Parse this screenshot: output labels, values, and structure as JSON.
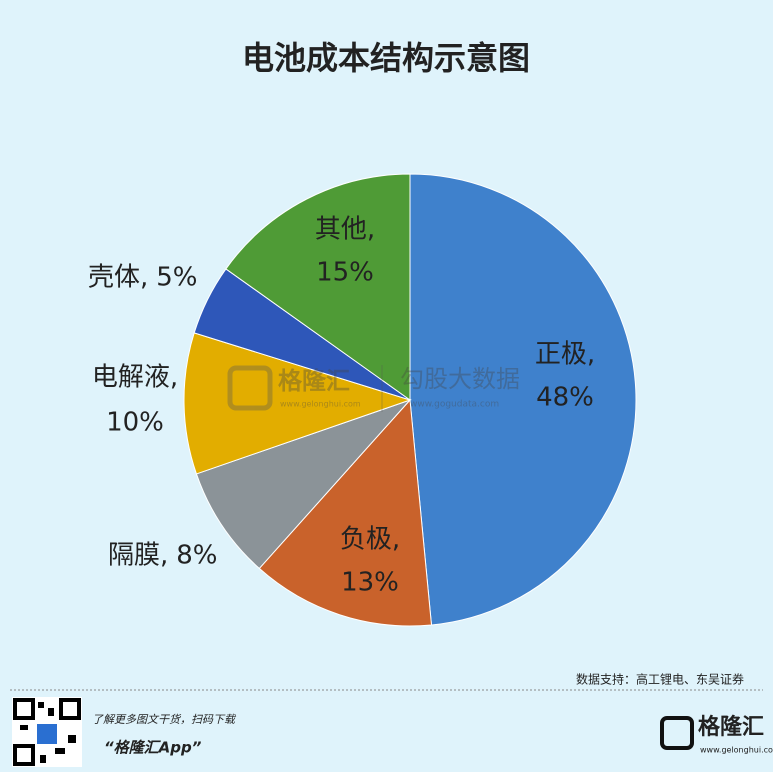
{
  "chart_data": {
    "type": "pie",
    "title": "电池成本结构示意图",
    "categories": [
      "正极,",
      "负极,",
      "隔膜,",
      "电解液,",
      "壳体,",
      "其他,"
    ],
    "values": [
      48,
      13,
      8,
      10,
      5,
      15
    ],
    "value_labels": [
      "48%",
      "13%",
      "8%",
      "10%",
      "5%",
      "15%"
    ],
    "colors": [
      "#3f81cc",
      "#c9622b",
      "#8b9398",
      "#e2ad00",
      "#2e57b9",
      "#4f9b36"
    ],
    "source": "数据支持：高工锂电、东吴证券"
  },
  "watermark": {
    "left": "格隆汇",
    "left_url": "www.gelonghui.com",
    "right": "勾股大数据",
    "right_url": "www.gogudata.com"
  },
  "footer": {
    "line1": "了解更多图文干货，扫码下载",
    "line2": "“格隆汇App”",
    "logo": "格隆汇",
    "logo_url": "www.gelonghui.com"
  }
}
